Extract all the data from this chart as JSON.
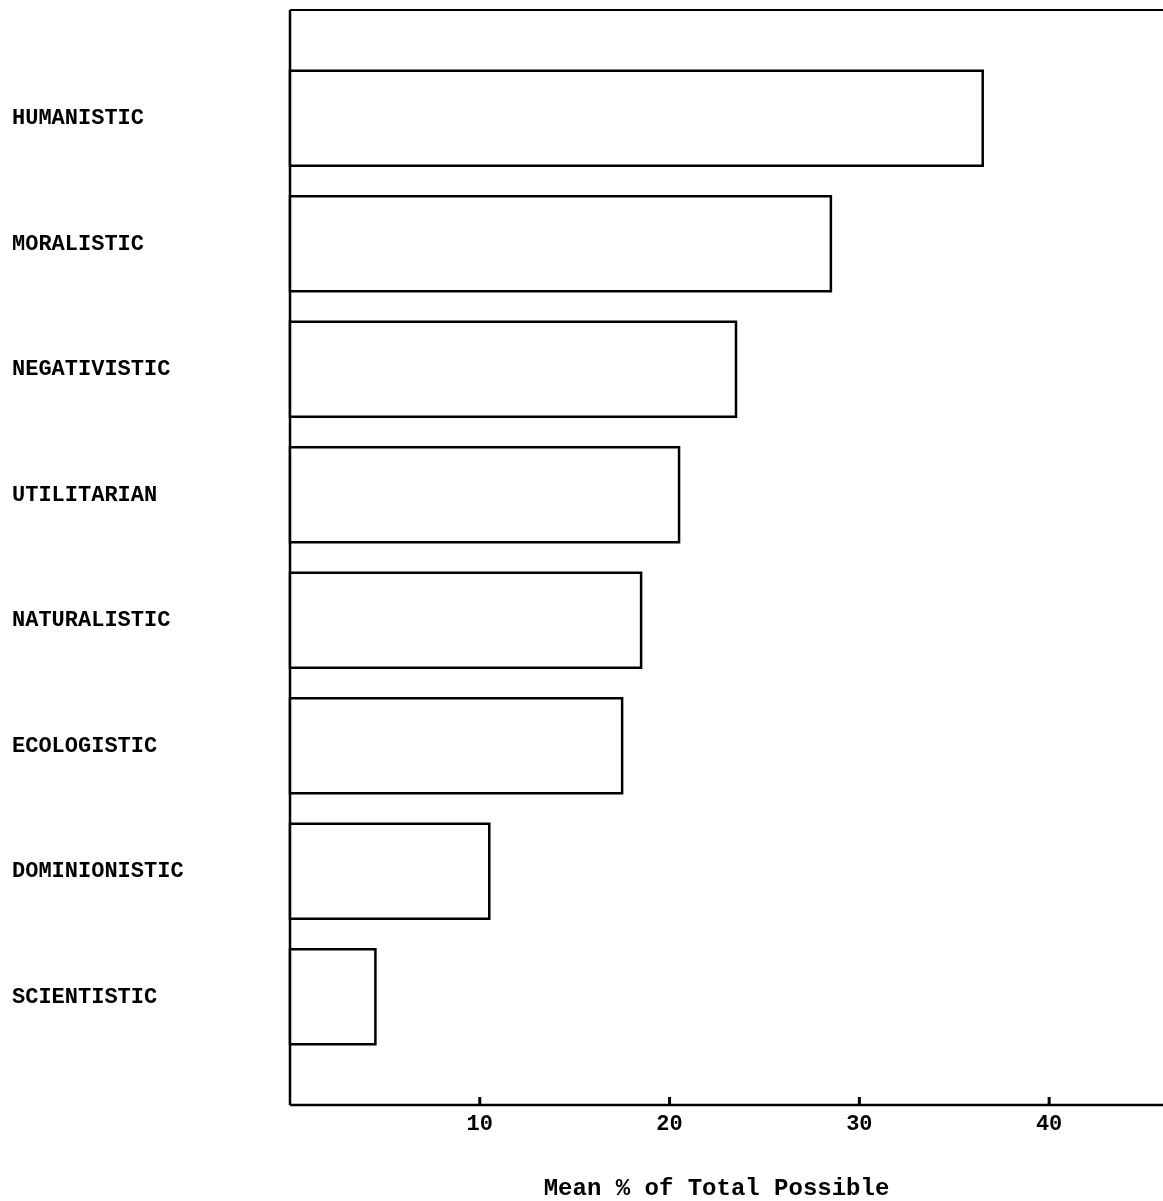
{
  "chart_data": {
    "type": "bar",
    "orientation": "horizontal",
    "xlabel": "Mean % of Total Possible",
    "categories": [
      "HUMANISTIC",
      "MORALISTIC",
      "NEGATIVISTIC",
      "UTILITARIAN",
      "NATURALISTIC",
      "ECOLOGISTIC",
      "DOMINIONISTIC",
      "SCIENTISTIC"
    ],
    "values": [
      36.5,
      28.5,
      23.5,
      20.5,
      18.5,
      17.5,
      10.5,
      4.5
    ],
    "color": "#ffffff",
    "xlim": [
      0,
      46
    ],
    "xticks": [
      10,
      20,
      30,
      40
    ],
    "grid": false
  }
}
